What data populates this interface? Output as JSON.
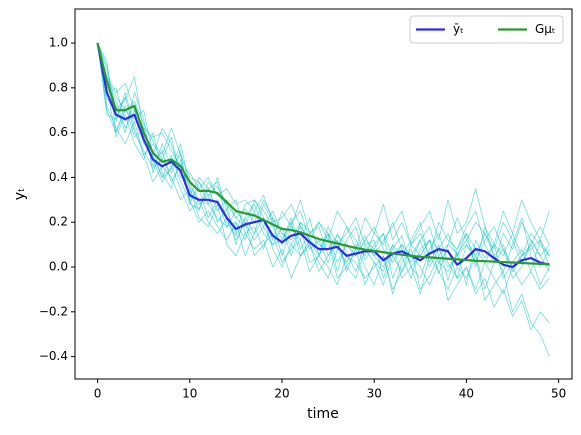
{
  "chart_data": {
    "type": "line",
    "xlabel": "time",
    "ylabel": "yₜ",
    "x": [
      0,
      1,
      2,
      3,
      4,
      5,
      6,
      7,
      8,
      9,
      10,
      11,
      12,
      13,
      14,
      15,
      16,
      17,
      18,
      19,
      20,
      21,
      22,
      23,
      24,
      25,
      26,
      27,
      28,
      29,
      30,
      31,
      32,
      33,
      34,
      35,
      36,
      37,
      38,
      39,
      40,
      41,
      42,
      43,
      44,
      45,
      46,
      47,
      48,
      49
    ],
    "xlim": [
      -2.45,
      51.45
    ],
    "xticks": [
      0,
      10,
      20,
      30,
      40,
      50
    ],
    "ylim": [
      -0.5,
      1.152
    ],
    "yticks": [
      {
        "value": -0.4,
        "label": "−0.4"
      },
      {
        "value": -0.2,
        "label": "−0.2"
      },
      {
        "value": 0,
        "label": "0.0"
      },
      0.2,
      0.4,
      0.6,
      0.8,
      {
        "value": 1,
        "label": "1.0"
      }
    ],
    "legend": "upper right",
    "samples": {
      "color": "#00bfbf",
      "values": [
        [
          1.0,
          0.82,
          0.74,
          0.62,
          0.7,
          0.55,
          0.52,
          0.4,
          0.5,
          0.38,
          0.3,
          0.35,
          0.22,
          0.3,
          0.18,
          0.2,
          0.12,
          0.25,
          0.15,
          0.1,
          0.18,
          0.05,
          0.2,
          0.08,
          0.12,
          0.02,
          0.15,
          0.06,
          -0.02,
          0.1,
          0.12,
          -0.05,
          0.08,
          0.14,
          0.0,
          0.05,
          0.12,
          -0.03,
          0.1,
          0.06,
          -0.08,
          0.12,
          0.04,
          0.1,
          -0.05,
          0.02,
          0.08,
          -0.02,
          0.12,
          0.05
        ],
        [
          1.0,
          0.7,
          0.6,
          0.72,
          0.58,
          0.62,
          0.45,
          0.52,
          0.38,
          0.46,
          0.35,
          0.25,
          0.38,
          0.32,
          0.28,
          0.1,
          0.22,
          0.15,
          0.28,
          0.2,
          0.05,
          0.18,
          0.12,
          0.22,
          0.05,
          0.15,
          -0.02,
          0.12,
          0.18,
          0.03,
          0.1,
          0.15,
          -0.05,
          0.05,
          0.12,
          0.2,
          0.02,
          0.1,
          -0.06,
          0.08,
          0.15,
          0.0,
          0.18,
          0.05,
          -0.02,
          0.1,
          0.22,
          0.05,
          -0.08,
          0.0
        ],
        [
          1.0,
          0.88,
          0.65,
          0.78,
          0.62,
          0.5,
          0.55,
          0.48,
          0.58,
          0.4,
          0.38,
          0.28,
          0.32,
          0.2,
          0.26,
          0.3,
          0.15,
          0.18,
          0.08,
          0.22,
          0.12,
          0.2,
          0.05,
          0.1,
          0.02,
          -0.05,
          0.08,
          0.02,
          0.1,
          0.0,
          -0.08,
          0.05,
          -0.12,
          0.02,
          0.08,
          -0.1,
          -0.04,
          0.05,
          -0.15,
          -0.08,
          0.0,
          -0.12,
          -0.05,
          -0.18,
          -0.1,
          -0.22,
          -0.15,
          -0.28,
          -0.2,
          -0.25
        ],
        [
          1.0,
          0.75,
          0.72,
          0.6,
          0.78,
          0.66,
          0.42,
          0.55,
          0.45,
          0.5,
          0.28,
          0.38,
          0.28,
          0.4,
          0.25,
          0.15,
          0.28,
          0.3,
          0.22,
          0.12,
          0.25,
          0.18,
          0.3,
          0.15,
          0.2,
          0.12,
          0.25,
          0.18,
          0.08,
          0.22,
          0.15,
          0.28,
          0.12,
          0.2,
          0.1,
          0.18,
          0.25,
          0.12,
          0.3,
          0.15,
          0.2,
          0.35,
          0.18,
          0.1,
          0.25,
          0.15,
          0.3,
          0.2,
          0.12,
          0.25
        ],
        [
          1.0,
          0.8,
          0.58,
          0.68,
          0.55,
          0.48,
          0.6,
          0.42,
          0.35,
          0.48,
          0.3,
          0.2,
          0.25,
          0.18,
          0.12,
          0.2,
          0.05,
          0.15,
          0.22,
          0.08,
          0.0,
          0.1,
          0.18,
          0.02,
          0.05,
          0.12,
          -0.05,
          0.0,
          0.08,
          -0.08,
          0.02,
          -0.02,
          0.1,
          -0.05,
          0.0,
          -0.12,
          0.05,
          -0.02,
          -0.1,
          0.0,
          -0.05,
          0.05,
          -0.15,
          -0.08,
          -0.02,
          -0.2,
          -0.12,
          -0.25,
          -0.3,
          -0.4
        ],
        [
          1.0,
          0.85,
          0.78,
          0.82,
          0.7,
          0.62,
          0.58,
          0.6,
          0.52,
          0.45,
          0.42,
          0.35,
          0.4,
          0.32,
          0.35,
          0.28,
          0.3,
          0.25,
          0.32,
          0.2,
          0.22,
          0.28,
          0.18,
          0.12,
          0.2,
          0.15,
          0.08,
          0.18,
          0.12,
          0.05,
          0.15,
          0.1,
          0.2,
          0.08,
          0.02,
          0.12,
          0.18,
          0.05,
          0.1,
          0.22,
          0.12,
          0.05,
          0.15,
          0.08,
          0.2,
          0.12,
          0.02,
          0.1,
          0.18,
          0.1
        ],
        [
          1.0,
          0.72,
          0.62,
          0.55,
          0.65,
          0.5,
          0.38,
          0.45,
          0.4,
          0.3,
          0.35,
          0.22,
          0.18,
          0.28,
          0.1,
          0.05,
          0.15,
          0.08,
          0.12,
          0.0,
          0.08,
          -0.05,
          0.05,
          0.1,
          -0.02,
          0.05,
          0.12,
          0.0,
          -0.05,
          0.08,
          0.02,
          -0.08,
          0.05,
          0.1,
          0.0,
          -0.05,
          0.08,
          0.15,
          0.02,
          -0.05,
          0.1,
          0.05,
          -0.1,
          0.02,
          0.08,
          -0.05,
          0.0,
          0.12,
          0.05,
          -0.02
        ],
        [
          1.0,
          0.9,
          0.7,
          0.75,
          0.85,
          0.6,
          0.5,
          0.62,
          0.55,
          0.42,
          0.32,
          0.4,
          0.35,
          0.25,
          0.3,
          0.22,
          0.18,
          0.3,
          0.25,
          0.18,
          0.1,
          0.2,
          0.25,
          0.12,
          0.05,
          0.18,
          0.1,
          0.15,
          0.22,
          0.1,
          0.05,
          0.12,
          0.18,
          0.25,
          0.1,
          0.15,
          0.05,
          0.2,
          0.12,
          0.08,
          0.18,
          0.25,
          0.1,
          0.02,
          0.15,
          0.08,
          0.2,
          0.12,
          0.05,
          0.1
        ],
        [
          1.0,
          0.78,
          0.8,
          0.65,
          0.72,
          0.58,
          0.48,
          0.38,
          0.45,
          0.35,
          0.25,
          0.3,
          0.2,
          0.15,
          0.22,
          0.12,
          0.2,
          0.05,
          0.1,
          0.15,
          0.02,
          0.08,
          0.12,
          -0.02,
          0.05,
          0.0,
          -0.08,
          0.05,
          0.02,
          -0.05,
          0.0,
          0.05,
          -0.1,
          -0.02,
          0.05,
          0.0,
          -0.08,
          0.02,
          0.08,
          -0.05,
          0.0,
          -0.1,
          0.02,
          -0.05,
          -0.12,
          0.0,
          -0.08,
          -0.02,
          -0.1,
          -0.05
        ],
        [
          1.0,
          0.84,
          0.76,
          0.7,
          0.74,
          0.64,
          0.56,
          0.5,
          0.62,
          0.5,
          0.4,
          0.38,
          0.32,
          0.36,
          0.28,
          0.22,
          0.26,
          0.2,
          0.3,
          0.22,
          0.15,
          0.12,
          0.2,
          0.16,
          0.1,
          0.08,
          0.14,
          0.1,
          0.05,
          0.12,
          0.18,
          0.08,
          0.02,
          0.1,
          0.05,
          0.12,
          0.0,
          0.08,
          0.15,
          0.05,
          0.1,
          0.02,
          0.12,
          0.18,
          0.08,
          0.0,
          0.05,
          0.15,
          0.1,
          0.05
        ],
        [
          1.0,
          0.68,
          0.66,
          0.76,
          0.6,
          0.52,
          0.44,
          0.48,
          0.42,
          0.52,
          0.28,
          0.26,
          0.35,
          0.38,
          0.2,
          0.14,
          0.22,
          0.28,
          0.18,
          0.1,
          0.12,
          0.22,
          0.08,
          0.15,
          0.18,
          0.05,
          0.12,
          -0.02,
          0.08,
          0.14,
          0.05,
          0.0,
          0.1,
          0.05,
          -0.05,
          0.08,
          0.12,
          0.02,
          -0.02,
          0.06,
          0.12,
          0.2,
          0.15,
          0.05,
          0.1,
          -0.02,
          0.05,
          0.1,
          0.0,
          0.08
        ],
        [
          1.0,
          0.92,
          0.6,
          0.7,
          0.66,
          0.7,
          0.5,
          0.4,
          0.44,
          0.55,
          0.36,
          0.3,
          0.28,
          0.22,
          0.18,
          0.25,
          0.2,
          0.12,
          0.18,
          0.25,
          0.15,
          0.1,
          0.05,
          0.12,
          0.08,
          0.15,
          0.02,
          0.1,
          0.05,
          0.12,
          0.08,
          0.15,
          0.05,
          -0.02,
          0.1,
          0.05,
          0.12,
          0.08,
          0.0,
          0.05,
          0.15,
          0.08,
          0.02,
          0.1,
          0.05,
          0.15,
          0.05,
          0.08,
          0.12,
          0.0
        ]
      ]
    },
    "series": [
      {
        "name": "ȳₜ",
        "color": "#2b2bea",
        "values": [
          1.0,
          0.78,
          0.68,
          0.66,
          0.68,
          0.57,
          0.48,
          0.45,
          0.47,
          0.43,
          0.32,
          0.3,
          0.3,
          0.29,
          0.22,
          0.17,
          0.19,
          0.2,
          0.21,
          0.14,
          0.11,
          0.14,
          0.15,
          0.11,
          0.08,
          0.08,
          0.09,
          0.05,
          0.06,
          0.07,
          0.07,
          0.03,
          0.06,
          0.07,
          0.05,
          0.03,
          0.06,
          0.08,
          0.07,
          0.01,
          0.04,
          0.08,
          0.07,
          0.04,
          0.01,
          0.0,
          0.03,
          0.04,
          0.02,
          0.01
        ]
      },
      {
        "name": "Gμₜ",
        "color": "#2a9a2a",
        "values": [
          1.0,
          0.83,
          0.7,
          0.7,
          0.72,
          0.6,
          0.51,
          0.47,
          0.48,
          0.45,
          0.38,
          0.34,
          0.34,
          0.33,
          0.29,
          0.25,
          0.24,
          0.23,
          0.21,
          0.19,
          0.17,
          0.165,
          0.155,
          0.14,
          0.125,
          0.115,
          0.105,
          0.095,
          0.085,
          0.078,
          0.072,
          0.066,
          0.06,
          0.055,
          0.05,
          0.046,
          0.043,
          0.04,
          0.037,
          0.034,
          0.031,
          0.028,
          0.026,
          0.024,
          0.022,
          0.02,
          0.018,
          0.016,
          0.014,
          0.013
        ]
      }
    ]
  }
}
